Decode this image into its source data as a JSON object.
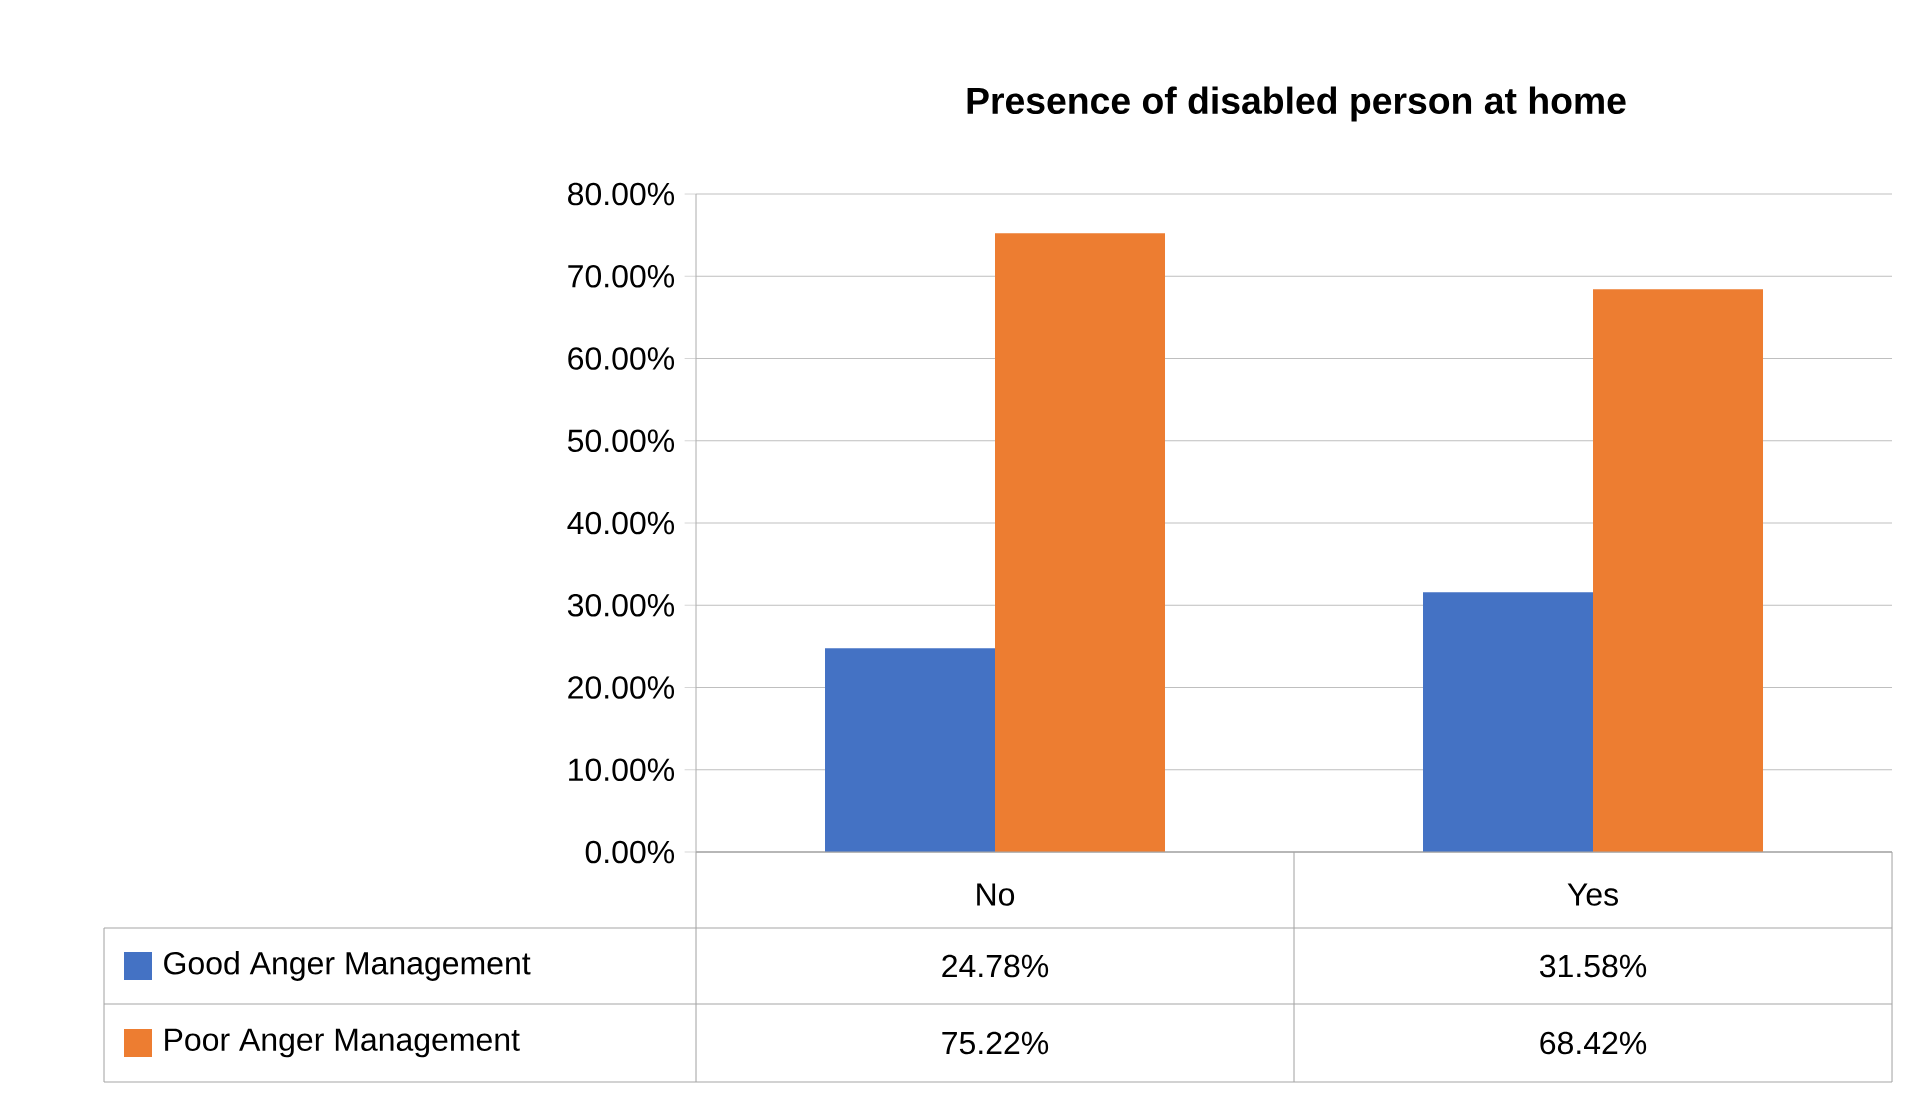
{
  "chart_data": {
    "type": "bar",
    "title": "Presence of disabled person at home",
    "categories": [
      "No",
      "Yes"
    ],
    "series": [
      {
        "name": "Good Anger Management",
        "color": "#4472c4",
        "values": [
          24.78,
          31.58
        ],
        "value_labels": [
          "24.78%",
          "31.58%"
        ]
      },
      {
        "name": "Poor Anger Management",
        "color": "#ed7d31",
        "values": [
          75.22,
          68.42
        ],
        "value_labels": [
          "75.22%",
          "68.42%"
        ]
      }
    ],
    "ylim": [
      0,
      80
    ],
    "yticks": [
      {
        "value": 0,
        "label": "0.00%"
      },
      {
        "value": 10,
        "label": "10.00%"
      },
      {
        "value": 20,
        "label": "20.00%"
      },
      {
        "value": 30,
        "label": "30.00%"
      },
      {
        "value": 40,
        "label": "40.00%"
      },
      {
        "value": 50,
        "label": "50.00%"
      },
      {
        "value": 60,
        "label": "60.00%"
      },
      {
        "value": 70,
        "label": "70.00%"
      },
      {
        "value": 80,
        "label": "80.00%"
      }
    ],
    "grid": "y",
    "legend": "bottom"
  }
}
